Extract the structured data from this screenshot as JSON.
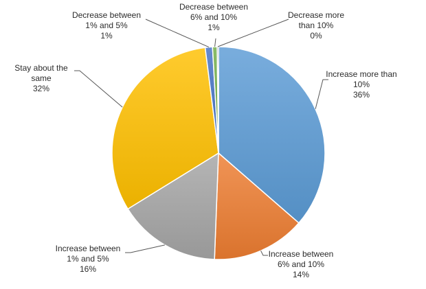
{
  "chart_data": {
    "type": "pie",
    "title": "",
    "legend": "none",
    "start": "12 o'clock, clockwise",
    "slices": [
      {
        "label": [
          "Increase more than",
          "10%"
        ],
        "pct_label": "36%",
        "value": 36.4,
        "color": "#5b9bd5"
      },
      {
        "label": [
          "Increase between",
          "6% and 10%"
        ],
        "pct_label": "14%",
        "value": 14.2,
        "color": "#ed7d31"
      },
      {
        "label": [
          "Increase between",
          "1% and 5%"
        ],
        "pct_label": "16%",
        "value": 15.6,
        "color": "#a5a5a5"
      },
      {
        "label": [
          "Stay about the",
          "same"
        ],
        "pct_label": "32%",
        "value": 31.8,
        "color": "#ffc000"
      },
      {
        "label": [
          "Decrease between",
          "1% and 5%"
        ],
        "pct_label": "1%",
        "value": 1.1,
        "color": "#4472c4"
      },
      {
        "label": [
          "Decrease between",
          "6% and 10%"
        ],
        "pct_label": "1%",
        "value": 0.7,
        "color": "#70ad47"
      },
      {
        "label": [
          "Decrease more",
          "than 10%"
        ],
        "pct_label": "0%",
        "value": 0.2,
        "color": "#264478"
      }
    ]
  }
}
